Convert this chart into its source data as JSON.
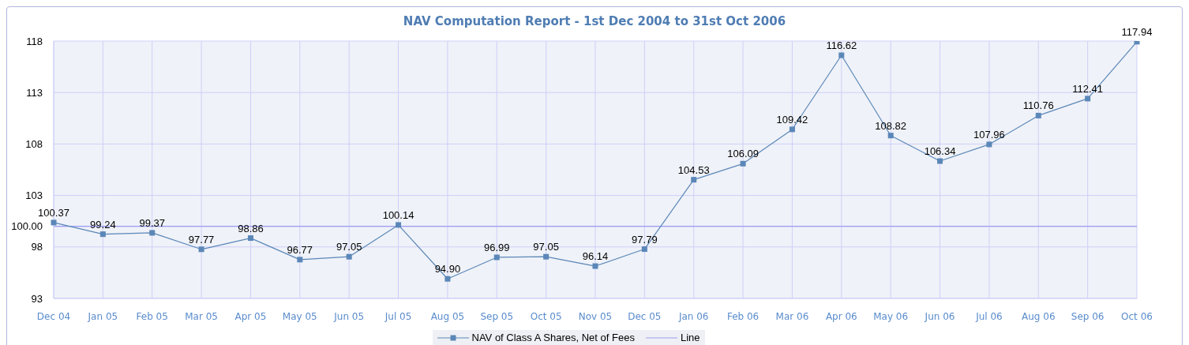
{
  "chart_data": {
    "type": "line",
    "title": "NAV Computation Report - 1st Dec 2004 to 31st Oct 2006",
    "categories": [
      "Dec 04",
      "Jan 05",
      "Feb 05",
      "Mar 05",
      "Apr 05",
      "May 05",
      "Jun 05",
      "Jul 05",
      "Aug 05",
      "Sep 05",
      "Oct 05",
      "Nov 05",
      "Dec 05",
      "Jan 06",
      "Feb 06",
      "Mar 06",
      "Apr 06",
      "May 06",
      "Jun 06",
      "Jul 06",
      "Aug 06",
      "Sep 06",
      "Oct 06"
    ],
    "series": [
      {
        "name": "NAV of Class A Shares, Net of Fees",
        "color": "#5b87b8",
        "values": [
          100.37,
          99.24,
          99.37,
          97.77,
          98.86,
          96.77,
          97.05,
          100.14,
          94.9,
          96.99,
          97.05,
          96.14,
          97.79,
          104.53,
          106.09,
          109.42,
          116.62,
          108.82,
          106.34,
          107.96,
          110.76,
          112.41,
          117.94
        ],
        "value_labels": [
          "100.37",
          "99.24",
          "99.37",
          "97.77",
          "98.86",
          "96.77",
          "97.05",
          "100.14",
          "94.90",
          "96.99",
          "97.05",
          "96.14",
          "97.79",
          "104.53",
          "106.09",
          "109.42",
          "116.62",
          "108.82",
          "106.34",
          "107.96",
          "110.76",
          "112.41",
          "117.94"
        ]
      }
    ],
    "ylim": [
      93,
      118
    ],
    "yticks": [
      93,
      98,
      {
        "value": 100,
        "label": "100.00"
      },
      103,
      108,
      113,
      118
    ],
    "ref_lines": [
      {
        "axis": "y",
        "value": 100,
        "label": "Line",
        "color": "#9c9cf2"
      }
    ],
    "grid": true,
    "legend": "bottom",
    "marker": "square"
  }
}
